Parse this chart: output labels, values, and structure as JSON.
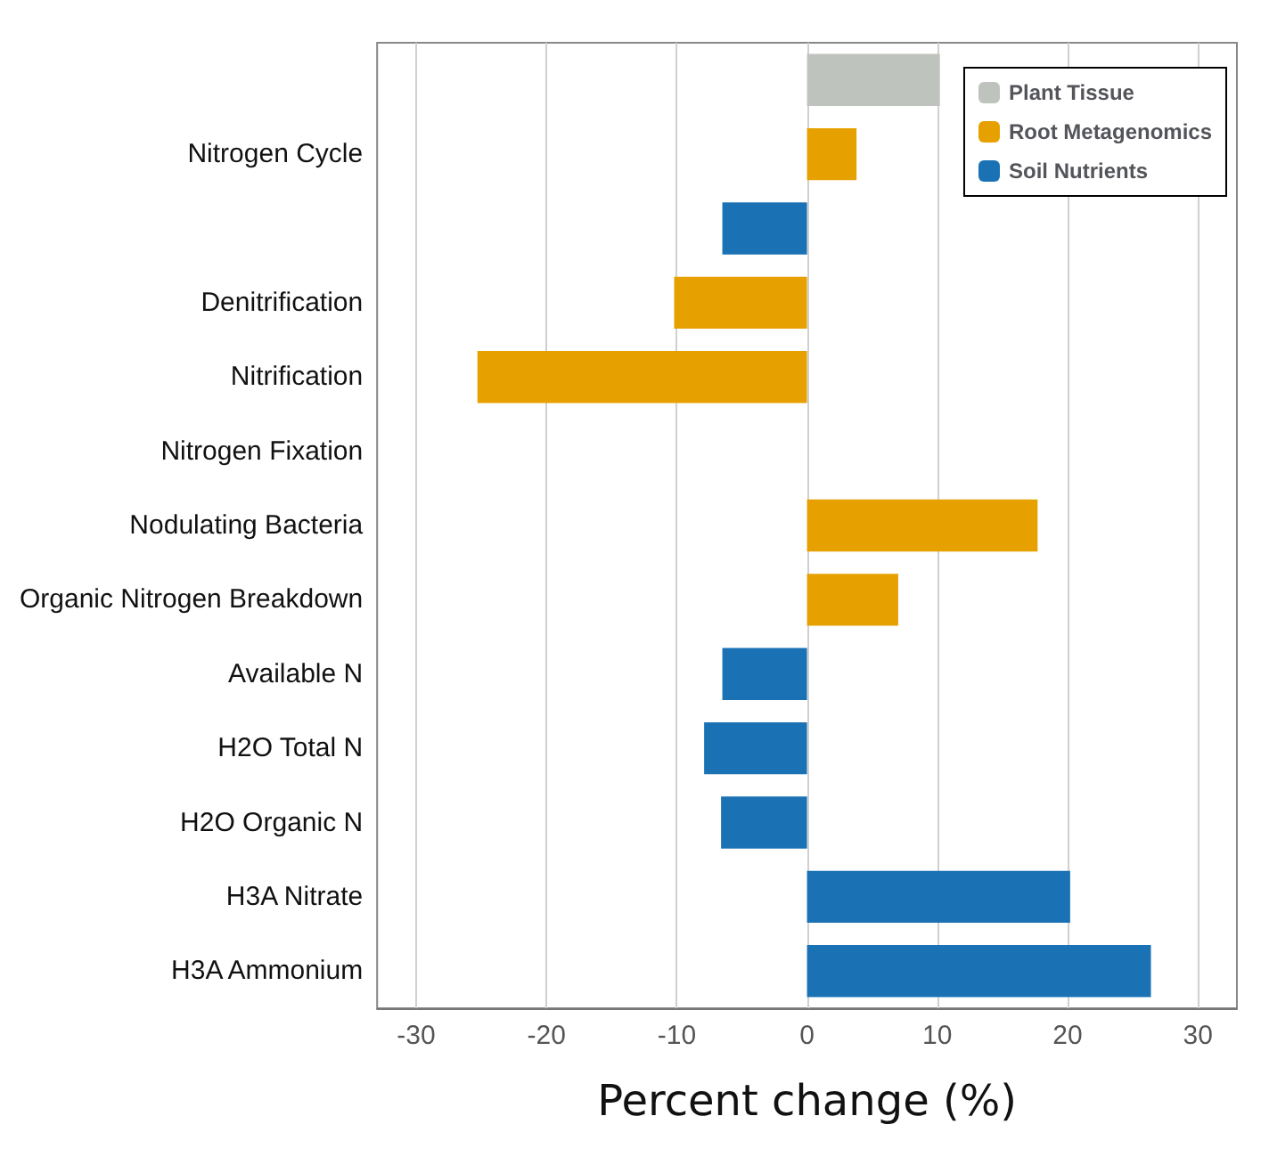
{
  "chart_data": {
    "type": "bar",
    "orientation": "horizontal",
    "xlabel": "Percent change (%)",
    "categories": [
      null,
      "Nitrogen Cycle",
      null,
      "Denitrification",
      "Nitrification",
      "Nitrogen Fixation",
      "Nodulating Bacteria",
      "Organic Nitrogen Breakdown",
      "Available N",
      "H2O Total N",
      "H2O Organic N",
      "H3A Nitrate",
      "H3A Ammonium"
    ],
    "series": [
      {
        "name": "Plant Tissue",
        "color": "#bfc3bd",
        "values": [
          10.2,
          null,
          null,
          null,
          null,
          null,
          null,
          null,
          null,
          null,
          null,
          null,
          null
        ]
      },
      {
        "name": "Root Metagenomics",
        "color": "#e6a000",
        "values": [
          null,
          3.8,
          null,
          -10.2,
          -25.3,
          0,
          17.7,
          7.0,
          null,
          null,
          null,
          null,
          null
        ]
      },
      {
        "name": "Soil Nutrients",
        "color": "#1a72b5",
        "values": [
          null,
          null,
          -6.5,
          null,
          null,
          null,
          null,
          null,
          -6.5,
          -7.9,
          -6.6,
          20.2,
          26.4
        ]
      }
    ],
    "xlim": [
      -33,
      33
    ],
    "xticks": [
      -30,
      -20,
      -10,
      0,
      10,
      20,
      30
    ],
    "grid": "x",
    "legend": "top right"
  }
}
